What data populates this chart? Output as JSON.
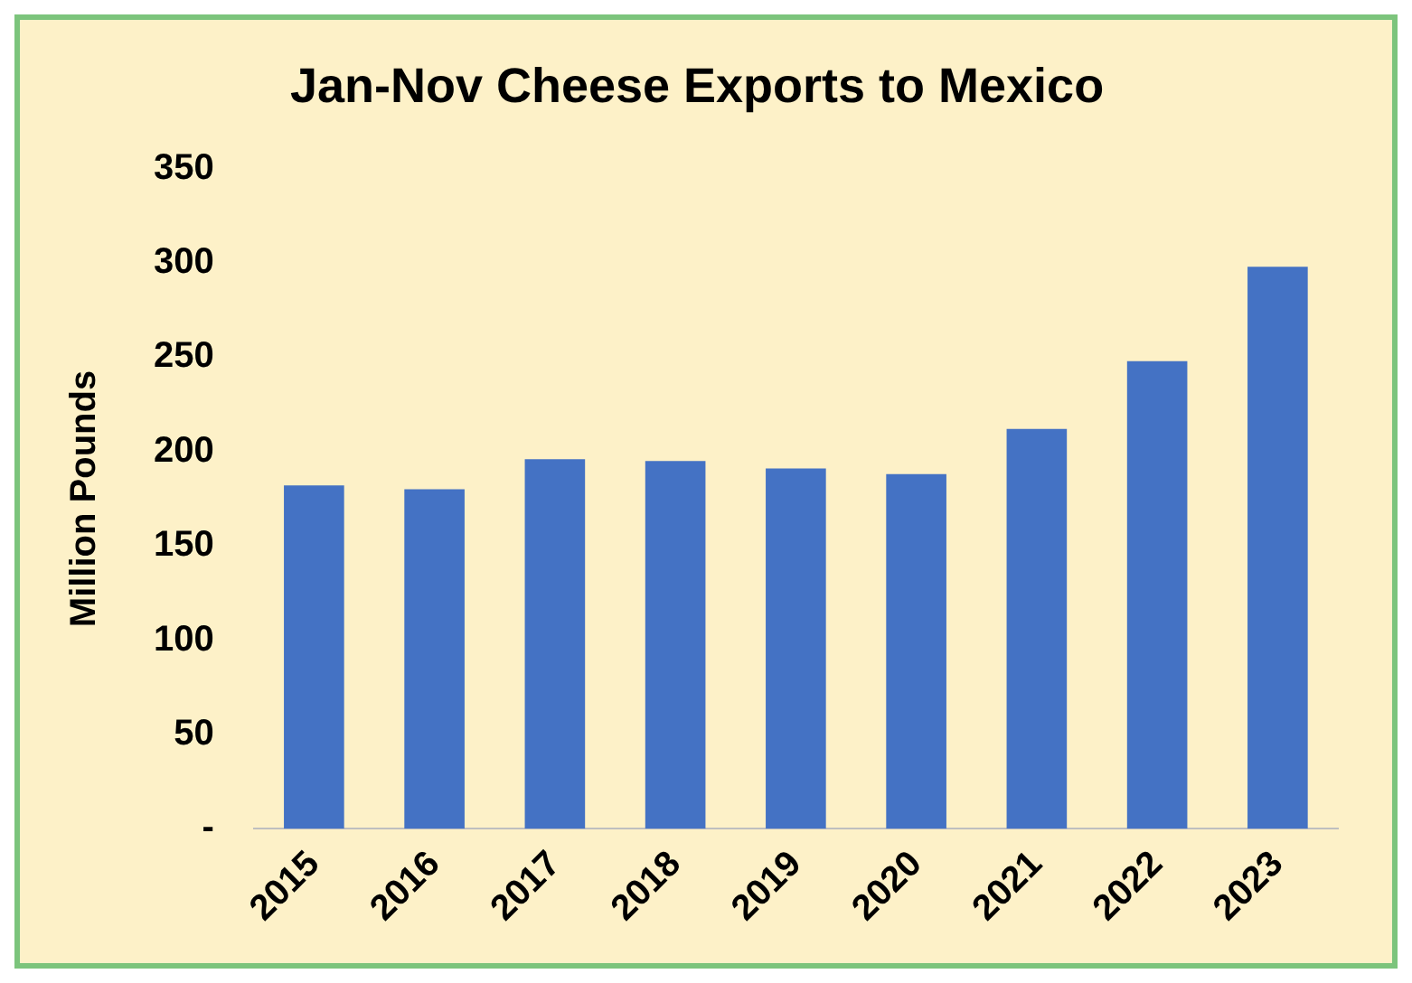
{
  "chart_data": {
    "type": "bar",
    "title": "Jan-Nov Cheese Exports to Mexico",
    "ylabel": "Million Pounds",
    "categories": [
      "2015",
      "2016",
      "2017",
      "2018",
      "2019",
      "2020",
      "2021",
      "2022",
      "2023"
    ],
    "values": [
      182,
      180,
      196,
      195,
      191,
      188,
      212,
      248,
      298
    ],
    "color": "#4472c4",
    "ylim": [
      0,
      350
    ],
    "yticks": [
      {
        "value": 0,
        "label": "-"
      },
      50,
      100,
      150,
      200,
      250,
      300,
      350
    ],
    "grid": false,
    "legend": false
  }
}
